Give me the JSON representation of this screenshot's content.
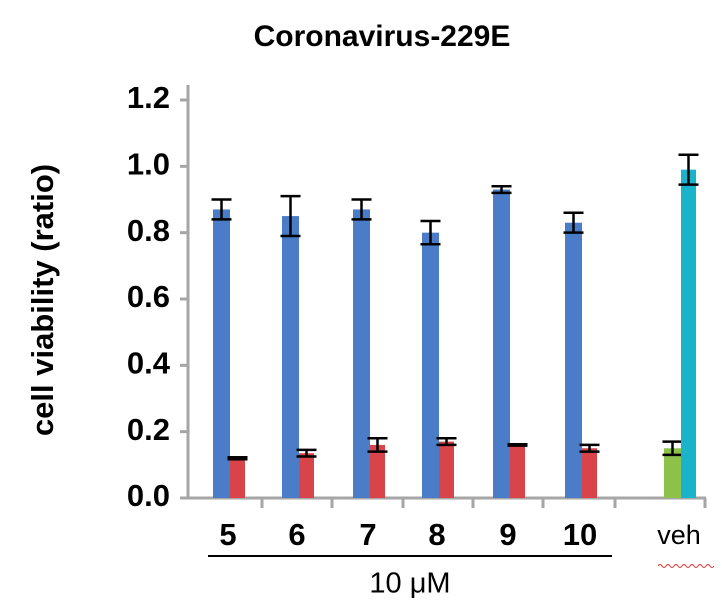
{
  "chart_data": {
    "type": "bar",
    "title": "Coronavirus-229E",
    "y_label": "cell viability (ratio)",
    "group_label": "10 μM",
    "categories": [
      "5",
      "6",
      "7",
      "8",
      "9",
      "10",
      "veh"
    ],
    "series": [
      {
        "color": "#4a7cc7",
        "values": [
          0.87,
          0.85,
          0.87,
          0.8,
          0.93,
          0.83,
          null
        ],
        "errors": [
          0.03,
          0.06,
          0.03,
          0.035,
          0.01,
          0.03,
          null
        ]
      },
      {
        "color": "#d9434a",
        "values": [
          0.12,
          0.135,
          0.16,
          0.17,
          0.16,
          0.15,
          null
        ],
        "errors": [
          0.003,
          0.01,
          0.02,
          0.01,
          0.002,
          0.01,
          null
        ]
      },
      {
        "color": "#8dc24a",
        "values": [
          null,
          null,
          null,
          null,
          null,
          null,
          0.15
        ],
        "errors": [
          null,
          null,
          null,
          null,
          null,
          null,
          0.02
        ]
      },
      {
        "color": "#19b3cc",
        "values": [
          null,
          null,
          null,
          null,
          null,
          null,
          0.99
        ],
        "errors": [
          null,
          null,
          null,
          null,
          null,
          null,
          0.045
        ]
      }
    ],
    "ylim": [
      0,
      1.2
    ],
    "yticks": [
      {
        "value": 0,
        "label": "0.0"
      },
      0.2,
      0.4,
      0.6,
      0.8,
      {
        "value": 1,
        "label": "1.0"
      },
      1.2
    ]
  }
}
